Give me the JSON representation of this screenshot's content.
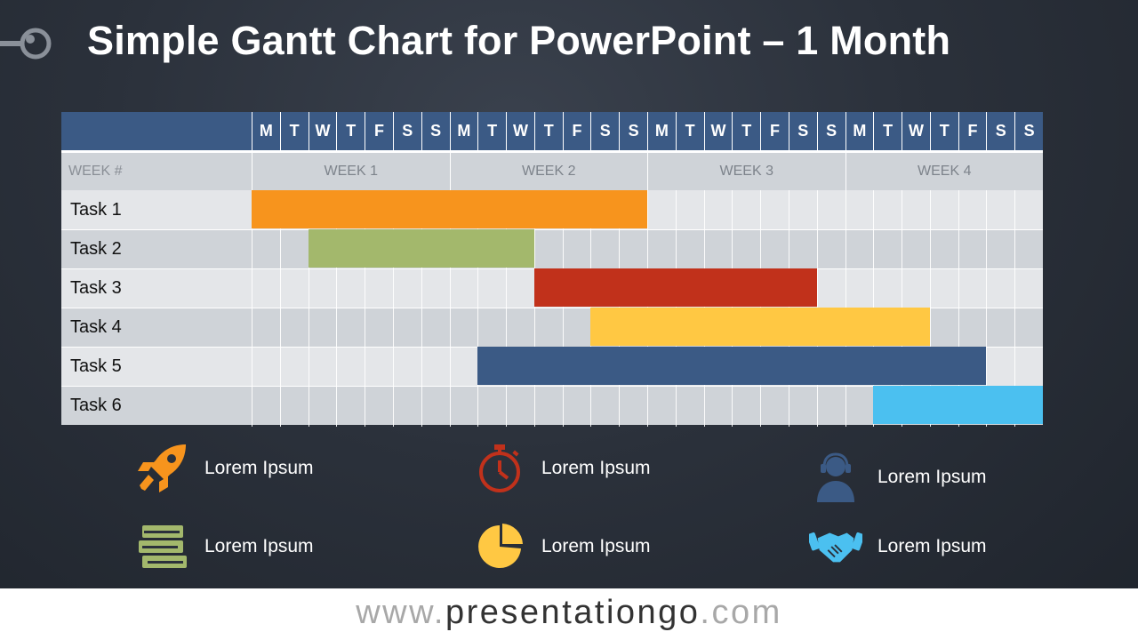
{
  "title": "Simple Gantt Chart for PowerPoint – 1 Month",
  "colors": {
    "header": "#3b5a85",
    "task1": "#f7941d",
    "task2": "#a3b86c",
    "task3": "#c1311b",
    "task4": "#ffc843",
    "task5": "#3b5a85",
    "task6": "#4bc0f0"
  },
  "chart_data": {
    "type": "gantt",
    "days": [
      "M",
      "T",
      "W",
      "T",
      "F",
      "S",
      "S",
      "M",
      "T",
      "W",
      "T",
      "F",
      "S",
      "S",
      "M",
      "T",
      "W",
      "T",
      "F",
      "S",
      "S",
      "M",
      "T",
      "W",
      "T",
      "F",
      "S",
      "S"
    ],
    "week_header_label": "WEEK #",
    "weeks": [
      "WEEK 1",
      "WEEK 2",
      "WEEK 3",
      "WEEK 4"
    ],
    "tasks": [
      {
        "name": "Task 1",
        "start_day": 1,
        "end_day": 14,
        "color": "#f7941d"
      },
      {
        "name": "Task 2",
        "start_day": 3,
        "end_day": 10,
        "color": "#a3b86c"
      },
      {
        "name": "Task 3",
        "start_day": 11,
        "end_day": 20,
        "color": "#c1311b"
      },
      {
        "name": "Task 4",
        "start_day": 13,
        "end_day": 24,
        "color": "#ffc843"
      },
      {
        "name": "Task 5",
        "start_day": 9,
        "end_day": 26,
        "color": "#3b5a85"
      },
      {
        "name": "Task 6",
        "start_day": 23,
        "end_day": 28,
        "color": "#4bc0f0"
      }
    ]
  },
  "legend": [
    {
      "label": "Lorem Ipsum",
      "icon": "rocket-icon",
      "color": "#f7941d"
    },
    {
      "label": "Lorem Ipsum",
      "icon": "stopwatch-icon",
      "color": "#c1311b"
    },
    {
      "label": "Lorem Ipsum",
      "icon": "support-agent-icon",
      "color": "#3b5a85"
    },
    {
      "label": "Lorem Ipsum",
      "icon": "books-icon",
      "color": "#a3b86c"
    },
    {
      "label": "Lorem Ipsum",
      "icon": "pie-chart-icon",
      "color": "#ffc843"
    },
    {
      "label": "Lorem Ipsum",
      "icon": "handshake-icon",
      "color": "#4bc0f0"
    }
  ],
  "footer": {
    "prefix": "www.",
    "domain": "presentationgo",
    "suffix": ".com"
  }
}
